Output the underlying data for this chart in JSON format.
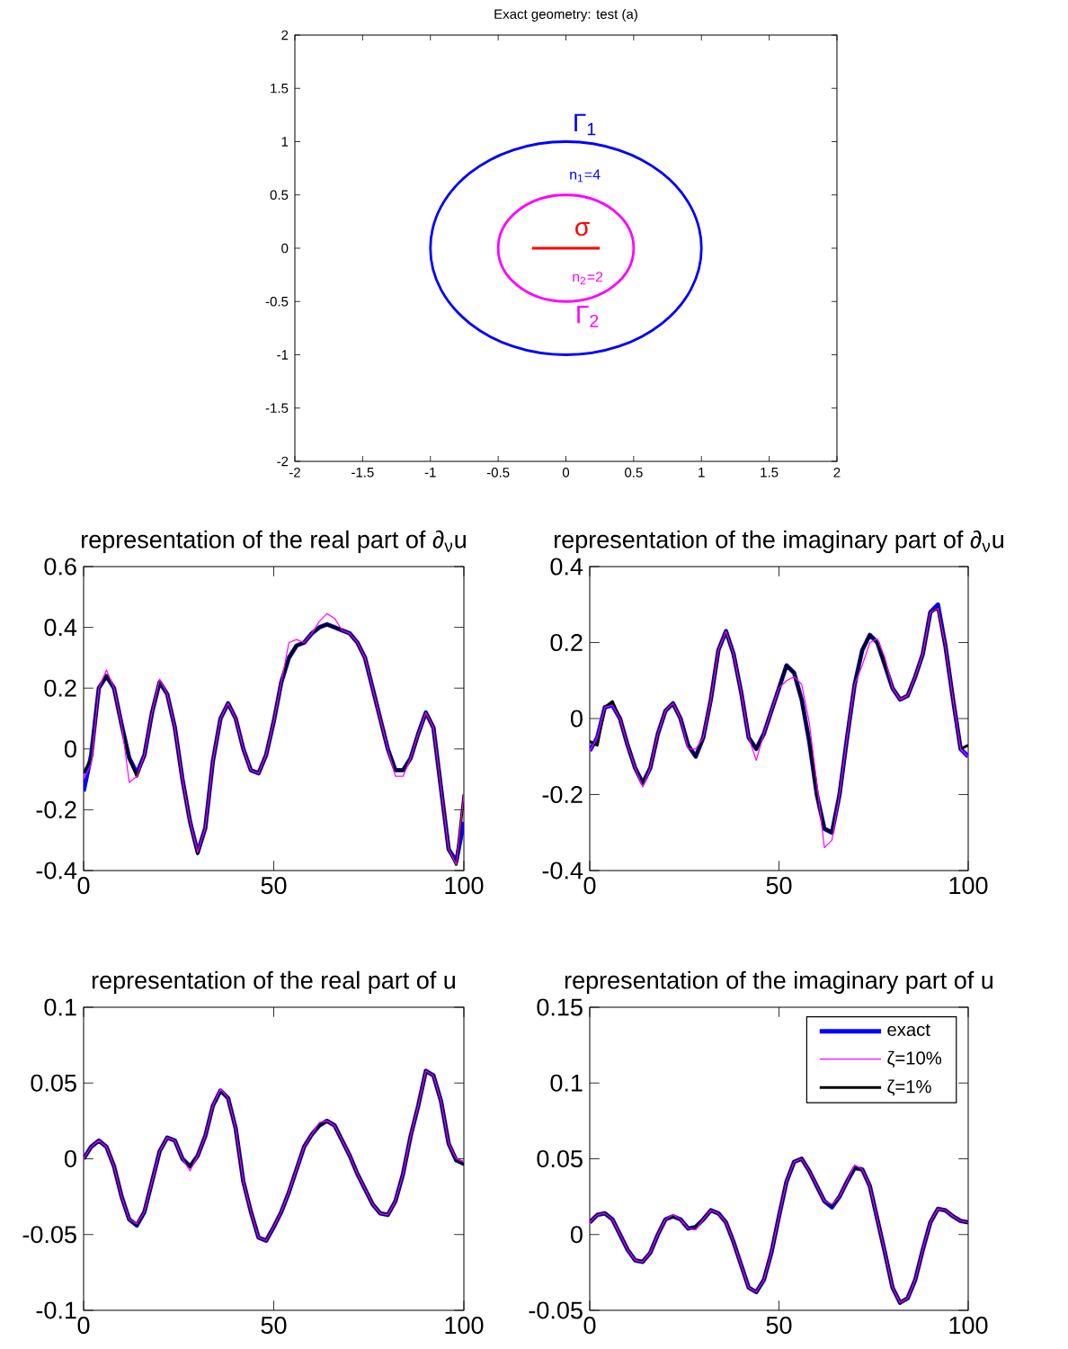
{
  "chart_data": [
    {
      "type": "line",
      "title": "Exact geometry: test (a)",
      "xlim": [
        -2,
        2
      ],
      "ylim": [
        -2,
        2
      ],
      "xticks": [
        -2,
        -1.5,
        -1,
        -0.5,
        0,
        0.5,
        1,
        1.5,
        2
      ],
      "yticks": [
        -2,
        -1.5,
        -1,
        -0.5,
        0,
        0.5,
        1,
        1.5,
        2
      ],
      "series": [
        {
          "color": "#ff0000",
          "x": [
            -0.25,
            0.25
          ],
          "values": [
            0,
            0
          ]
        }
      ],
      "annotations": [
        "Γ$_{1}$",
        "n$_{1}$=4",
        "σ",
        "n$_{2}$=2",
        "Γ$_{2}$"
      ]
    },
    {
      "type": "line",
      "title": "representation of the real part of ∂$_{ν}$u",
      "xlim": [
        0,
        100
      ],
      "ylim": [
        -0.4,
        0.6
      ],
      "xticks": [
        0,
        50,
        100
      ],
      "yticks": [
        -0.4,
        -0.2,
        0,
        0.2,
        0.4,
        0.6
      ],
      "x": [
        0,
        2,
        4,
        6,
        8,
        10,
        12,
        14,
        16,
        18,
        20,
        22,
        24,
        26,
        28,
        30,
        32,
        34,
        36,
        38,
        40,
        42,
        44,
        46,
        48,
        50,
        52,
        54,
        56,
        58,
        60,
        62,
        64,
        66,
        68,
        70,
        72,
        74,
        76,
        78,
        80,
        82,
        84,
        86,
        88,
        90,
        92,
        94,
        96,
        98,
        100
      ],
      "series": [
        {
          "color": "#0000ff",
          "values": [
            -0.14,
            -0.02,
            0.2,
            0.24,
            0.2,
            0.08,
            -0.03,
            -0.08,
            -0.02,
            0.12,
            0.22,
            0.18,
            0.07,
            -0.1,
            -0.24,
            -0.34,
            -0.26,
            -0.04,
            0.1,
            0.15,
            0.1,
            0.0,
            -0.07,
            -0.08,
            -0.02,
            0.09,
            0.22,
            0.3,
            0.34,
            0.35,
            0.38,
            0.4,
            0.41,
            0.4,
            0.39,
            0.38,
            0.35,
            0.3,
            0.2,
            0.1,
            0.0,
            -0.07,
            -0.07,
            -0.03,
            0.05,
            0.12,
            0.07,
            -0.13,
            -0.33,
            -0.37,
            -0.24
          ]
        },
        {
          "color": "#ff00ff",
          "values": [
            -0.1,
            -0.05,
            0.2,
            0.26,
            0.2,
            0.08,
            -0.11,
            -0.09,
            -0.02,
            0.12,
            0.23,
            0.18,
            0.07,
            -0.1,
            -0.24,
            -0.34,
            -0.26,
            -0.04,
            0.1,
            0.15,
            0.1,
            0.0,
            -0.07,
            -0.08,
            -0.02,
            0.09,
            0.22,
            0.35,
            0.36,
            0.35,
            0.38,
            0.42,
            0.445,
            0.43,
            0.39,
            0.38,
            0.35,
            0.3,
            0.2,
            0.1,
            0.0,
            -0.09,
            -0.09,
            -0.03,
            0.05,
            0.12,
            0.07,
            -0.13,
            -0.33,
            -0.38,
            -0.15
          ]
        },
        {
          "color": "#000000",
          "values": [
            -0.08,
            -0.03,
            0.2,
            0.24,
            0.2,
            0.08,
            -0.03,
            -0.09,
            -0.02,
            0.12,
            0.22,
            0.18,
            0.07,
            -0.1,
            -0.24,
            -0.345,
            -0.26,
            -0.04,
            0.1,
            0.15,
            0.1,
            0.0,
            -0.07,
            -0.08,
            -0.02,
            0.09,
            0.22,
            0.3,
            0.34,
            0.35,
            0.38,
            0.4,
            0.41,
            0.4,
            0.39,
            0.38,
            0.35,
            0.3,
            0.2,
            0.1,
            0.0,
            -0.07,
            -0.07,
            -0.03,
            0.05,
            0.12,
            0.07,
            -0.13,
            -0.33,
            -0.38,
            -0.15
          ]
        }
      ]
    },
    {
      "type": "line",
      "title": "representation of the imaginary part of ∂$_{ν}$u",
      "xlim": [
        0,
        100
      ],
      "ylim": [
        -0.4,
        0.4
      ],
      "xticks": [
        0,
        50,
        100
      ],
      "yticks": [
        -0.4,
        -0.2,
        0,
        0.2,
        0.4
      ],
      "x": [
        0,
        2,
        4,
        6,
        8,
        10,
        12,
        14,
        16,
        18,
        20,
        22,
        24,
        26,
        28,
        30,
        32,
        34,
        36,
        38,
        40,
        42,
        44,
        46,
        48,
        50,
        52,
        54,
        56,
        58,
        60,
        62,
        64,
        66,
        68,
        70,
        72,
        74,
        76,
        78,
        80,
        82,
        84,
        86,
        88,
        90,
        92,
        94,
        96,
        98,
        100
      ],
      "series": [
        {
          "color": "#0000ff",
          "values": [
            -0.085,
            -0.05,
            0.03,
            0.035,
            0.0,
            -0.07,
            -0.13,
            -0.17,
            -0.13,
            -0.04,
            0.02,
            0.04,
            0.0,
            -0.07,
            -0.1,
            -0.05,
            0.05,
            0.18,
            0.23,
            0.17,
            0.07,
            -0.05,
            -0.08,
            -0.04,
            0.02,
            0.08,
            0.14,
            0.12,
            0.05,
            -0.06,
            -0.2,
            -0.29,
            -0.3,
            -0.2,
            -0.05,
            0.09,
            0.18,
            0.22,
            0.2,
            0.14,
            0.08,
            0.05,
            0.06,
            0.11,
            0.17,
            0.28,
            0.3,
            0.19,
            0.05,
            -0.08,
            -0.1
          ]
        },
        {
          "color": "#ff00ff",
          "values": [
            -0.085,
            -0.05,
            0.03,
            0.035,
            0.0,
            -0.07,
            -0.13,
            -0.18,
            -0.13,
            -0.04,
            0.02,
            0.04,
            0.0,
            -0.08,
            -0.08,
            -0.05,
            0.05,
            0.18,
            0.23,
            0.17,
            0.07,
            -0.05,
            -0.11,
            -0.04,
            0.02,
            0.08,
            0.1,
            0.11,
            0.09,
            -0.01,
            -0.17,
            -0.34,
            -0.32,
            -0.2,
            -0.05,
            0.09,
            0.14,
            0.2,
            0.21,
            0.16,
            0.08,
            0.05,
            0.06,
            0.11,
            0.17,
            0.28,
            0.29,
            0.19,
            0.05,
            -0.08,
            -0.1
          ]
        },
        {
          "color": "#000000",
          "values": [
            -0.06,
            -0.07,
            0.03,
            0.045,
            0.0,
            -0.07,
            -0.13,
            -0.17,
            -0.13,
            -0.04,
            0.02,
            0.04,
            0.0,
            -0.07,
            -0.1,
            -0.05,
            0.05,
            0.18,
            0.23,
            0.17,
            0.07,
            -0.05,
            -0.08,
            -0.04,
            0.02,
            0.08,
            0.14,
            0.12,
            0.05,
            -0.06,
            -0.2,
            -0.29,
            -0.3,
            -0.2,
            -0.05,
            0.09,
            0.18,
            0.22,
            0.2,
            0.14,
            0.08,
            0.05,
            0.06,
            0.11,
            0.17,
            0.28,
            0.29,
            0.19,
            0.05,
            -0.08,
            -0.07
          ]
        }
      ]
    },
    {
      "type": "line",
      "title": "representation of the real part of u",
      "xlim": [
        0,
        100
      ],
      "ylim": [
        -0.1,
        0.1
      ],
      "xticks": [
        0,
        50,
        100
      ],
      "yticks": [
        -0.1,
        -0.05,
        0,
        0.05,
        0.1
      ],
      "x": [
        0,
        2,
        4,
        6,
        8,
        10,
        12,
        14,
        16,
        18,
        20,
        22,
        24,
        26,
        28,
        30,
        32,
        34,
        36,
        38,
        40,
        42,
        44,
        46,
        48,
        50,
        52,
        54,
        56,
        58,
        60,
        62,
        64,
        66,
        68,
        70,
        72,
        74,
        76,
        78,
        80,
        82,
        84,
        86,
        88,
        90,
        92,
        94,
        96,
        98,
        100
      ],
      "series": [
        {
          "color": "#0000ff",
          "values": [
            0,
            0.008,
            0.012,
            0.008,
            -0.005,
            -0.025,
            -0.04,
            -0.044,
            -0.035,
            -0.015,
            0.005,
            0.014,
            0.012,
            0.0,
            -0.005,
            0.002,
            0.015,
            0.035,
            0.045,
            0.04,
            0.02,
            -0.015,
            -0.035,
            -0.052,
            -0.054,
            -0.045,
            -0.035,
            -0.022,
            -0.007,
            0.008,
            0.016,
            0.022,
            0.025,
            0.022,
            0.012,
            0.002,
            -0.01,
            -0.02,
            -0.03,
            -0.036,
            -0.037,
            -0.028,
            -0.01,
            0.015,
            0.035,
            0.058,
            0.055,
            0.038,
            0.01,
            -0.001,
            -0.003
          ]
        },
        {
          "color": "#ff00ff",
          "values": [
            0,
            0.008,
            0.012,
            0.008,
            -0.005,
            -0.025,
            -0.04,
            -0.043,
            -0.035,
            -0.015,
            0.005,
            0.014,
            0.012,
            0.0,
            -0.008,
            0.002,
            0.015,
            0.035,
            0.046,
            0.04,
            0.02,
            -0.015,
            -0.035,
            -0.052,
            -0.054,
            -0.045,
            -0.035,
            -0.022,
            -0.007,
            0.008,
            0.016,
            0.024,
            0.025,
            0.022,
            0.012,
            0.002,
            -0.01,
            -0.02,
            -0.03,
            -0.036,
            -0.037,
            -0.028,
            -0.01,
            0.015,
            0.035,
            0.058,
            0.055,
            0.038,
            0.01,
            0.0,
            -0.002
          ]
        },
        {
          "color": "#000000",
          "values": [
            0,
            0.008,
            0.012,
            0.008,
            -0.005,
            -0.025,
            -0.04,
            -0.044,
            -0.035,
            -0.015,
            0.005,
            0.014,
            0.012,
            0.0,
            -0.005,
            0.002,
            0.015,
            0.035,
            0.045,
            0.04,
            0.02,
            -0.015,
            -0.035,
            -0.052,
            -0.054,
            -0.045,
            -0.035,
            -0.022,
            -0.007,
            0.008,
            0.016,
            0.022,
            0.025,
            0.022,
            0.012,
            0.002,
            -0.01,
            -0.02,
            -0.03,
            -0.036,
            -0.037,
            -0.028,
            -0.01,
            0.015,
            0.035,
            0.058,
            0.055,
            0.038,
            0.01,
            -0.001,
            -0.004
          ]
        }
      ]
    },
    {
      "type": "line",
      "title": "representation of the imaginary part of u",
      "xlim": [
        0,
        100
      ],
      "ylim": [
        -0.05,
        0.15
      ],
      "xticks": [
        0,
        50,
        100
      ],
      "yticks": [
        -0.05,
        0,
        0.05,
        0.1,
        0.15
      ],
      "legend": "top right",
      "x": [
        0,
        2,
        4,
        6,
        8,
        10,
        12,
        14,
        16,
        18,
        20,
        22,
        24,
        26,
        28,
        30,
        32,
        34,
        36,
        38,
        40,
        42,
        44,
        46,
        48,
        50,
        52,
        54,
        56,
        58,
        60,
        62,
        64,
        66,
        68,
        70,
        72,
        74,
        76,
        78,
        80,
        82,
        84,
        86,
        88,
        90,
        92,
        94,
        96,
        98,
        100
      ],
      "series": [
        {
          "name": "exact",
          "color": "#0000ff",
          "values": [
            0.008,
            0.013,
            0.014,
            0.01,
            0.0,
            -0.01,
            -0.017,
            -0.018,
            -0.012,
            0.0,
            0.01,
            0.012,
            0.01,
            0.004,
            0.005,
            0.01,
            0.016,
            0.014,
            0.008,
            -0.005,
            -0.02,
            -0.035,
            -0.038,
            -0.03,
            -0.012,
            0.012,
            0.035,
            0.048,
            0.05,
            0.042,
            0.032,
            0.022,
            0.018,
            0.025,
            0.035,
            0.044,
            0.043,
            0.032,
            0.01,
            -0.012,
            -0.035,
            -0.045,
            -0.042,
            -0.03,
            -0.01,
            0.008,
            0.017,
            0.016,
            0.012,
            0.009,
            0.008
          ]
        },
        {
          "name": "ζ=10%",
          "color": "#ff00ff",
          "values": [
            0.008,
            0.013,
            0.014,
            0.01,
            0.0,
            -0.01,
            -0.017,
            -0.018,
            -0.012,
            0.0,
            0.01,
            0.013,
            0.01,
            0.004,
            0.003,
            0.01,
            0.016,
            0.014,
            0.008,
            -0.005,
            -0.02,
            -0.035,
            -0.038,
            -0.03,
            -0.012,
            0.012,
            0.035,
            0.048,
            0.05,
            0.042,
            0.032,
            0.022,
            0.02,
            0.025,
            0.035,
            0.046,
            0.043,
            0.032,
            0.01,
            -0.012,
            -0.035,
            -0.045,
            -0.042,
            -0.03,
            -0.01,
            0.008,
            0.017,
            0.016,
            0.012,
            0.009,
            0.008
          ]
        },
        {
          "name": "ζ=1%",
          "color": "#000000",
          "values": [
            0.008,
            0.013,
            0.014,
            0.01,
            0.0,
            -0.01,
            -0.017,
            -0.018,
            -0.012,
            0.0,
            0.01,
            0.012,
            0.01,
            0.004,
            0.005,
            0.01,
            0.016,
            0.014,
            0.008,
            -0.005,
            -0.02,
            -0.035,
            -0.038,
            -0.03,
            -0.012,
            0.012,
            0.035,
            0.048,
            0.05,
            0.042,
            0.032,
            0.022,
            0.019,
            0.025,
            0.035,
            0.044,
            0.043,
            0.032,
            0.01,
            -0.012,
            -0.035,
            -0.045,
            -0.042,
            -0.03,
            -0.01,
            0.008,
            0.017,
            0.016,
            0.012,
            0.009,
            0.008
          ]
        }
      ]
    }
  ]
}
